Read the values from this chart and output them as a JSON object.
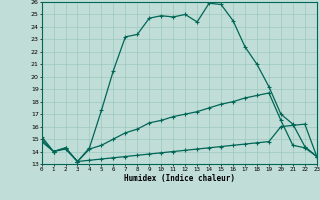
{
  "xlabel": "Humidex (Indice chaleur)",
  "xlim": [
    0,
    23
  ],
  "ylim": [
    13,
    26
  ],
  "yticks": [
    13,
    14,
    15,
    16,
    17,
    18,
    19,
    20,
    21,
    22,
    23,
    24,
    25,
    26
  ],
  "xticks": [
    0,
    1,
    2,
    3,
    4,
    5,
    6,
    7,
    8,
    9,
    10,
    11,
    12,
    13,
    14,
    15,
    16,
    17,
    18,
    19,
    20,
    21,
    22,
    23
  ],
  "bg_color": "#c0ddd8",
  "grid_color": "#9ec8c2",
  "line_color": "#006655",
  "line1_x": [
    0,
    1,
    2,
    3,
    4,
    5,
    6,
    7,
    8,
    9,
    10,
    11,
    12,
    13,
    14,
    15,
    16,
    17,
    18,
    19,
    20,
    21,
    22,
    23
  ],
  "line1_y": [
    15.2,
    14.0,
    14.3,
    13.2,
    14.3,
    17.3,
    20.5,
    23.2,
    23.4,
    24.7,
    24.9,
    24.8,
    25.0,
    24.4,
    25.9,
    25.8,
    24.5,
    22.4,
    21.0,
    19.2,
    17.0,
    16.2,
    14.4,
    13.6
  ],
  "line2_x": [
    0,
    1,
    2,
    3,
    4,
    5,
    6,
    7,
    8,
    9,
    10,
    11,
    12,
    13,
    14,
    15,
    16,
    17,
    18,
    19,
    20,
    21,
    22,
    23
  ],
  "line2_y": [
    14.8,
    14.0,
    14.3,
    13.2,
    14.2,
    14.5,
    15.0,
    15.5,
    15.8,
    16.3,
    16.5,
    16.8,
    17.0,
    17.2,
    17.5,
    17.8,
    18.0,
    18.3,
    18.5,
    18.7,
    16.5,
    14.5,
    14.3,
    13.6
  ],
  "line3_x": [
    0,
    1,
    2,
    3,
    4,
    5,
    6,
    7,
    8,
    9,
    10,
    11,
    12,
    13,
    14,
    15,
    16,
    17,
    18,
    19,
    20,
    21,
    22,
    23
  ],
  "line3_y": [
    15.0,
    14.0,
    14.2,
    13.2,
    13.3,
    13.4,
    13.5,
    13.6,
    13.7,
    13.8,
    13.9,
    14.0,
    14.1,
    14.2,
    14.3,
    14.4,
    14.5,
    14.6,
    14.7,
    14.8,
    16.0,
    16.1,
    16.2,
    13.6
  ]
}
